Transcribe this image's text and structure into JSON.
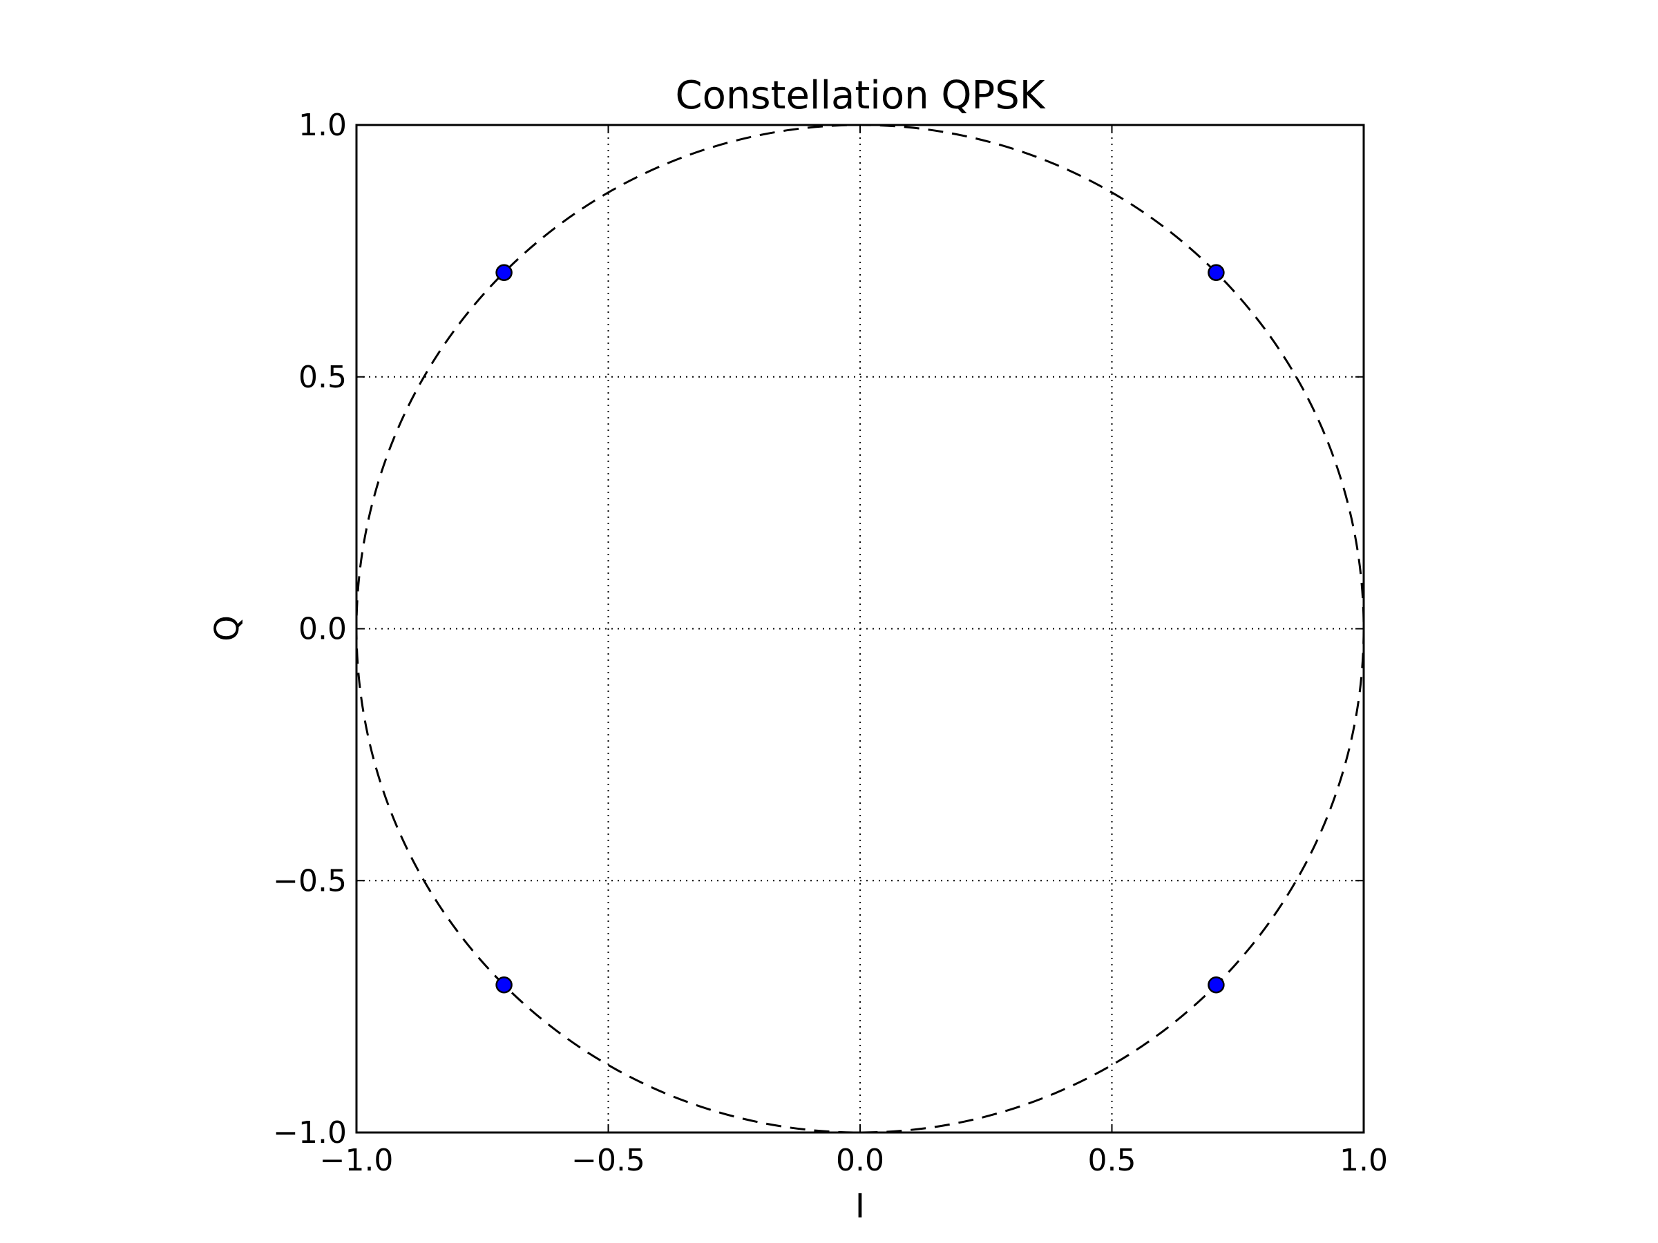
{
  "chart_data": {
    "type": "scatter",
    "title": "Constellation QPSK",
    "xlabel": "I",
    "ylabel": "Q",
    "xlim": [
      -1.0,
      1.0
    ],
    "ylim": [
      -1.0,
      1.0
    ],
    "x_ticks": [
      "−1.0",
      "−0.5",
      "0.0",
      "0.5",
      "1.0"
    ],
    "y_ticks": [
      "−1.0",
      "−0.5",
      "0.0",
      "0.5",
      "1.0"
    ],
    "x_tick_values": [
      -1.0,
      -0.5,
      0.0,
      0.5,
      1.0
    ],
    "y_tick_values": [
      -1.0,
      -0.5,
      0.0,
      0.5,
      1.0
    ],
    "grid": true,
    "grid_style": "dotted",
    "reference_circle": {
      "radius": 1.0,
      "style": "dashed"
    },
    "series": [
      {
        "points": [
          {
            "x": 0.707,
            "y": 0.707
          },
          {
            "x": -0.707,
            "y": 0.707
          },
          {
            "x": -0.707,
            "y": -0.707
          },
          {
            "x": 0.707,
            "y": -0.707
          }
        ]
      }
    ],
    "colors": {
      "marker": "#0000ff",
      "marker_edge": "#000000",
      "axes": "#000000"
    }
  }
}
